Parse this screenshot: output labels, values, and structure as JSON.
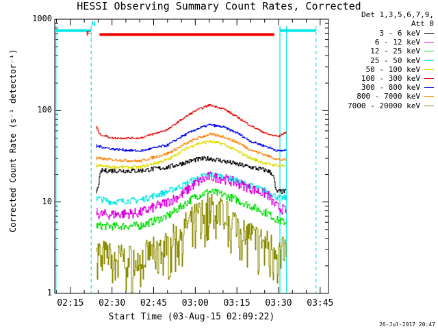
{
  "chart_data": {
    "type": "line",
    "title": "HESSI Observing Summary Count Rates, Corrected",
    "xlabel": "Start Time (03-Aug-15 02:09:22)",
    "ylabel": "Corrected Count Rate (s⁻¹ detector⁻¹)",
    "yscale": "log",
    "ylim": [
      1,
      1000
    ],
    "xlim_minutes": [
      9.37,
      108.0
    ],
    "xticks": [
      {
        "label": "02:15",
        "minute": 15
      },
      {
        "label": "02:30",
        "minute": 30
      },
      {
        "label": "02:45",
        "minute": 45
      },
      {
        "label": "03:00",
        "minute": 60
      },
      {
        "label": "03:15",
        "minute": 75
      },
      {
        "label": "03:30",
        "minute": 90
      },
      {
        "label": "03:45",
        "minute": 105
      }
    ],
    "yticks": [
      {
        "label": "1000",
        "value": 1000
      },
      {
        "label": "100",
        "value": 100
      },
      {
        "label": "10",
        "value": 10
      },
      {
        "label": "1",
        "value": 1
      }
    ],
    "legend_header": [
      "Det 1,3,5,6,7,9,",
      "Att 0"
    ],
    "legend_position": "right",
    "data_start_minute": 24.5,
    "data_end_minute": 92.5,
    "series": [
      {
        "name": "3 - 6 keV",
        "color": "#000000",
        "x": [
          24.5,
          26,
          30,
          40,
          50,
          60,
          65,
          70,
          80,
          86,
          88,
          89,
          92.5
        ],
        "y": [
          13,
          22,
          22,
          22,
          24,
          29,
          30,
          28,
          24,
          22,
          20,
          13,
          13
        ]
      },
      {
        "name": "6 - 12 keV",
        "color": "#dd00dd",
        "x": [
          24.5,
          26,
          30,
          40,
          50,
          55,
          60,
          65,
          70,
          75,
          80,
          86,
          89,
          92.5
        ],
        "y": [
          7.5,
          7.3,
          7.3,
          7.6,
          10,
          12,
          16,
          19,
          18,
          16,
          14,
          12,
          9,
          8
        ]
      },
      {
        "name": "12 - 25 keV",
        "color": "#00dd00",
        "x": [
          24.5,
          30,
          40,
          50,
          55,
          60,
          65,
          70,
          75,
          80,
          86,
          90,
          92.5
        ],
        "y": [
          5.5,
          5.4,
          5.5,
          7,
          9,
          11.5,
          13,
          12,
          10.5,
          9,
          7.5,
          6.2,
          6
        ]
      },
      {
        "name": "25 - 50 keV",
        "color": "#00e6e6",
        "x": [
          24.5,
          30,
          40,
          50,
          55,
          60,
          65,
          70,
          75,
          80,
          86,
          90,
          92.5
        ],
        "y": [
          11,
          10,
          10.5,
          13,
          15,
          18,
          20,
          19,
          17,
          15,
          13,
          11,
          11
        ]
      },
      {
        "name": "50 - 100 keV",
        "color": "#dddd00",
        "x": [
          24.5,
          30,
          40,
          50,
          55,
          60,
          65,
          70,
          75,
          80,
          86,
          90,
          92.5
        ],
        "y": [
          25,
          24,
          24,
          29,
          36,
          43,
          46,
          43,
          36,
          30,
          26,
          25,
          25
        ]
      },
      {
        "name": "100 - 300 keV",
        "color": "#ee0000",
        "x": [
          24.5,
          25.5,
          30,
          40,
          50,
          55,
          60,
          65,
          70,
          75,
          80,
          86,
          90,
          92.5
        ],
        "y": [
          65,
          55,
          50,
          50,
          62,
          80,
          100,
          115,
          105,
          85,
          68,
          55,
          52,
          58
        ]
      },
      {
        "name": "300 - 800 keV",
        "color": "#0000ee",
        "x": [
          24.5,
          30,
          40,
          50,
          55,
          60,
          65,
          70,
          75,
          80,
          86,
          90,
          92.5
        ],
        "y": [
          41,
          38,
          36,
          42,
          52,
          62,
          70,
          66,
          57,
          46,
          40,
          36,
          37
        ]
      },
      {
        "name": "800 - 7000 keV",
        "color": "#ff8000",
        "x": [
          24.5,
          30,
          40,
          50,
          55,
          60,
          65,
          70,
          75,
          80,
          86,
          90,
          92.5
        ],
        "y": [
          30,
          29,
          28,
          34,
          41,
          49,
          55,
          52,
          45,
          37,
          32,
          29,
          29
        ]
      },
      {
        "name": "7000 - 20000 keV",
        "color": "#8b8b00",
        "x": [
          24.5,
          30,
          40,
          50,
          55,
          60,
          65,
          70,
          75,
          80,
          86,
          90,
          92.5
        ],
        "y": [
          3,
          2.5,
          2.5,
          3.5,
          5,
          7,
          9,
          8,
          6,
          4.5,
          3.5,
          3,
          3
        ]
      }
    ],
    "annotations": {
      "saa_bars": [
        {
          "color": "#00e6e6",
          "x": [
            9.37,
            22.5
          ],
          "y": 750
        },
        {
          "color": "#00e6e6",
          "x": [
            90.5,
            103.5
          ],
          "y": 750
        }
      ],
      "flare_bar": {
        "color": "#ee0000",
        "x": [
          25.5,
          88.5
        ],
        "y": 680
      },
      "vertical_lines": [
        {
          "color": "#00e6e6",
          "minute": 9.8,
          "style": "solid"
        },
        {
          "color": "#00e6e6",
          "minute": 22.5,
          "style": "dashed"
        },
        {
          "color": "#00e6e6",
          "minute": 90.5,
          "style": "solid"
        },
        {
          "color": "#00e6e6",
          "minute": 92.9,
          "style": "solid"
        },
        {
          "color": "#00e6e6",
          "minute": 103.5,
          "style": "dashed"
        }
      ],
      "labels": [
        {
          "text": "N",
          "color": "#00e6e6",
          "minute": 23.3,
          "value": 870
        },
        {
          "text": "F",
          "color": "#ee0000",
          "minute": 21.4,
          "value": 680
        }
      ]
    }
  },
  "timestamp": "26-Jul-2017 20:47"
}
